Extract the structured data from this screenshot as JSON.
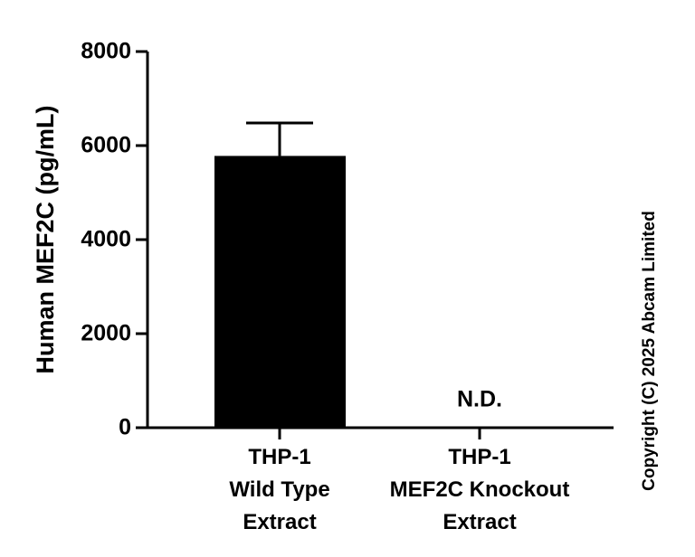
{
  "chart_data": {
    "type": "bar",
    "y_label": "Human MEF2C (pg/mL)",
    "categories": [
      [
        "THP-1",
        "Wild Type",
        "Extract"
      ],
      [
        "THP-1",
        "MEF2C Knockout",
        "Extract"
      ]
    ],
    "values": [
      5780,
      null
    ],
    "errors": [
      700,
      null
    ],
    "value_labels": [
      null,
      "N.D."
    ],
    "color": "#000000",
    "ylim": [
      0,
      8000
    ],
    "yticks": [
      0,
      2000,
      4000,
      6000,
      8000
    ],
    "copyright": "Copyright (C) 2025 Abcam Limited"
  }
}
